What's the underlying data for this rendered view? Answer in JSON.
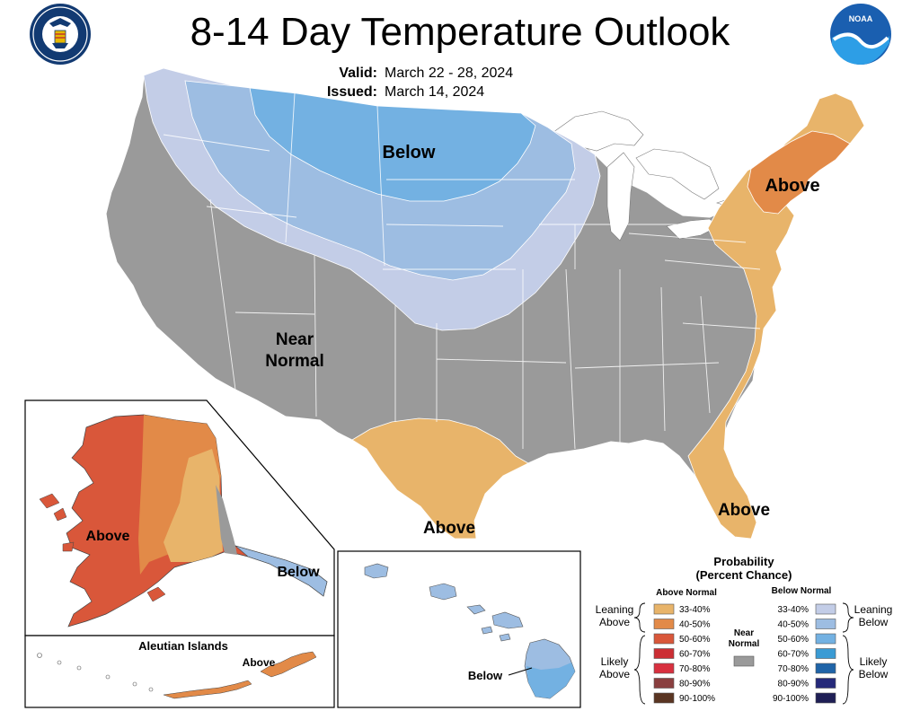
{
  "title": "8-14 Day Temperature Outlook",
  "valid": {
    "label": "Valid:",
    "value": "March 22 - 28, 2024"
  },
  "issued": {
    "label": "Issued:",
    "value": "March 14, 2024"
  },
  "labels": {
    "conus_below": "Below",
    "conus_above_ne": "Above",
    "near_normal_1": "Near",
    "near_normal_2": "Normal",
    "above_texas": "Above",
    "above_florida": "Above",
    "alaska_above": "Above",
    "alaska_below": "Below",
    "aleutian_title": "Aleutian Islands",
    "aleutian_above": "Above",
    "hawaii_below": "Below"
  },
  "legend": {
    "title_1": "Probability",
    "title_2": "(Percent Chance)",
    "above_header": "Above Normal",
    "below_header": "Below Normal",
    "leaning_above_1": "Leaning",
    "leaning_above_2": "Above",
    "likely_above_1": "Likely",
    "likely_above_2": "Above",
    "near_1": "Near",
    "near_2": "Normal",
    "leaning_below_1": "Leaning",
    "leaning_below_2": "Below",
    "likely_below_1": "Likely",
    "likely_below_2": "Below",
    "above_classes": [
      {
        "range": "33-40%",
        "color": "#e8b46a"
      },
      {
        "range": "40-50%",
        "color": "#e28a48"
      },
      {
        "range": "50-60%",
        "color": "#d9573a"
      },
      {
        "range": "60-70%",
        "color": "#cc2e34"
      },
      {
        "range": "70-80%",
        "color": "#d8303f"
      },
      {
        "range": "80-90%",
        "color": "#8a3f3f"
      },
      {
        "range": "90-100%",
        "color": "#5a3522"
      }
    ],
    "below_classes": [
      {
        "range": "33-40%",
        "color": "#c3cde7"
      },
      {
        "range": "40-50%",
        "color": "#9dbde2"
      },
      {
        "range": "50-60%",
        "color": "#73b1e2"
      },
      {
        "range": "60-70%",
        "color": "#3a9bd4"
      },
      {
        "range": "70-80%",
        "color": "#1f64a8"
      },
      {
        "range": "80-90%",
        "color": "#25297a"
      },
      {
        "range": "90-100%",
        "color": "#1f1f55"
      }
    ],
    "near_color": "#9a9a9a"
  },
  "colors": {
    "near_normal": "#9a9a9a",
    "lean_above": "#e8b46a",
    "above_40_50": "#e28a48",
    "above_50_60": "#d9573a",
    "lean_below": "#c3cde7",
    "below_40_50": "#9dbde2",
    "below_50_60": "#73b1e2"
  },
  "logos": {
    "commerce_seal_icon": "department-of-commerce-seal",
    "commerce_seal_text": "DEPARTMENT OF COMMERCE · UNITED STATES OF AMERICA",
    "noaa_logo_icon": "noaa-logo",
    "noaa_logo_text": "NOAA"
  }
}
